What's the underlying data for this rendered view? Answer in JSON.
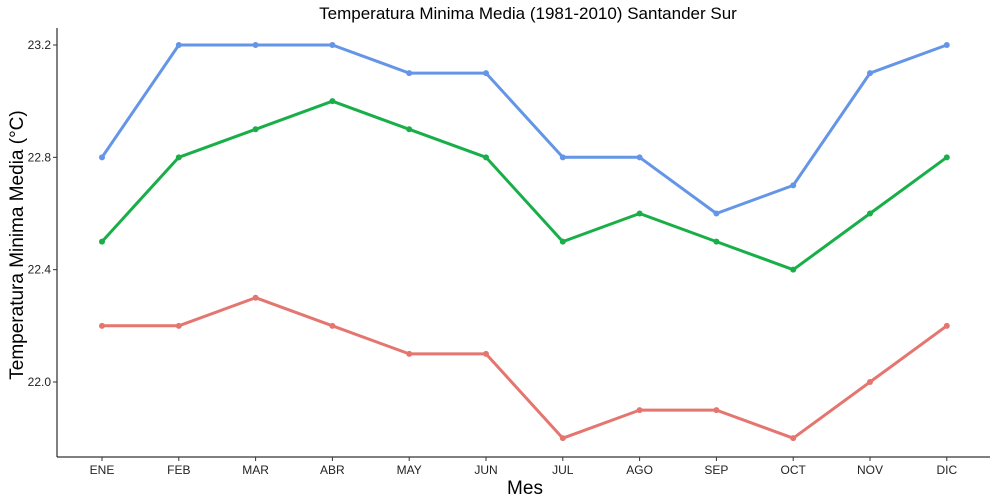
{
  "chart_data": {
    "type": "line",
    "title": "Temperatura Minima Media (1981-2010)  Santander Sur",
    "xlabel": "Mes",
    "ylabel": "Temperatura Minima Media  (°C)",
    "categories": [
      "ENE",
      "FEB",
      "MAR",
      "ABR",
      "MAY",
      "JUN",
      "JUL",
      "AGO",
      "SEP",
      "OCT",
      "NOV",
      "DIC"
    ],
    "yticks": [
      "22.0",
      "22.4",
      "22.8",
      "23.2"
    ],
    "ylim": [
      21.75,
      23.25
    ],
    "grid": false,
    "legend": "none",
    "series": [
      {
        "color": "#6495E6",
        "values": [
          22.8,
          23.2,
          23.2,
          23.2,
          23.1,
          23.1,
          22.8,
          22.8,
          22.6,
          22.7,
          23.1,
          23.2
        ]
      },
      {
        "color": "#18AE48",
        "values": [
          22.5,
          22.8,
          22.9,
          23.0,
          22.9,
          22.8,
          22.5,
          22.6,
          22.5,
          22.4,
          22.6,
          22.8
        ]
      },
      {
        "color": "#E5756F",
        "values": [
          22.2,
          22.2,
          22.3,
          22.2,
          22.1,
          22.1,
          21.8,
          21.9,
          21.9,
          21.8,
          22.0,
          22.2
        ]
      }
    ]
  }
}
